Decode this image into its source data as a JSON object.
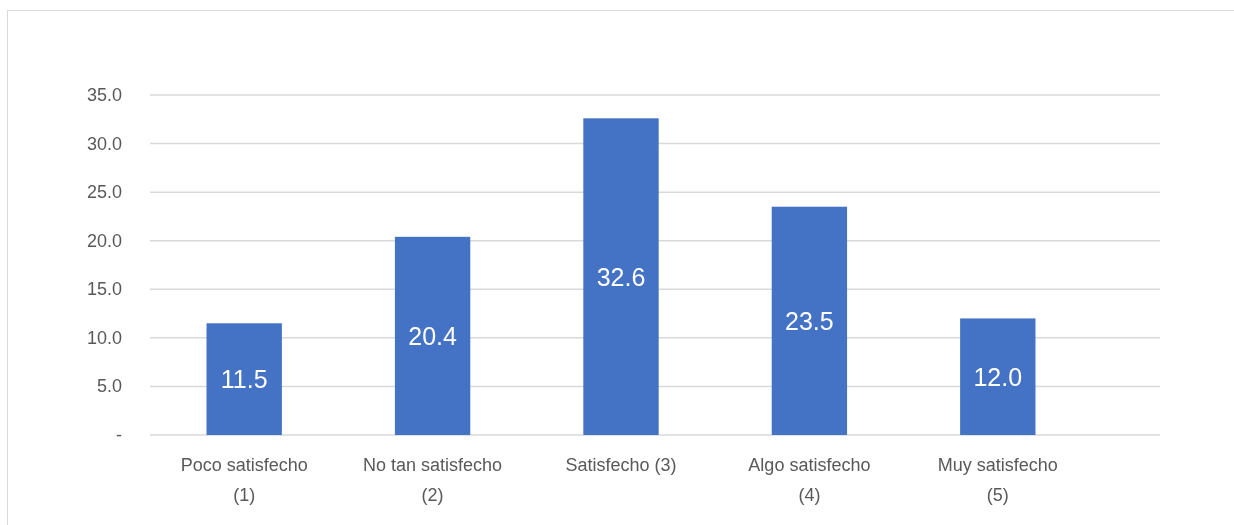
{
  "chart_data": {
    "type": "bar",
    "categories": [
      "Poco satisfecho (1)",
      "No tan satisfecho (2)",
      "Satisfecho (3)",
      "Algo satisfecho (4)",
      "Muy satisfecho (5)"
    ],
    "values": [
      11.5,
      20.4,
      32.6,
      23.5,
      12.0
    ],
    "value_labels": [
      "11.5",
      "20.4",
      "32.6",
      "23.5",
      "12.0"
    ],
    "color": "#4472c4",
    "ylim": [
      0,
      35
    ],
    "yticks": [
      {
        "value": 0,
        "label": "-"
      },
      {
        "value": 5,
        "label": "5.0"
      },
      {
        "value": 10,
        "label": "10.0"
      },
      {
        "value": 15,
        "label": "15.0"
      },
      {
        "value": 20,
        "label": "20.0"
      },
      {
        "value": 25,
        "label": "25.0"
      },
      {
        "value": 30,
        "label": "30.0"
      },
      {
        "value": 35,
        "label": "35.0"
      }
    ],
    "grid": "y"
  }
}
